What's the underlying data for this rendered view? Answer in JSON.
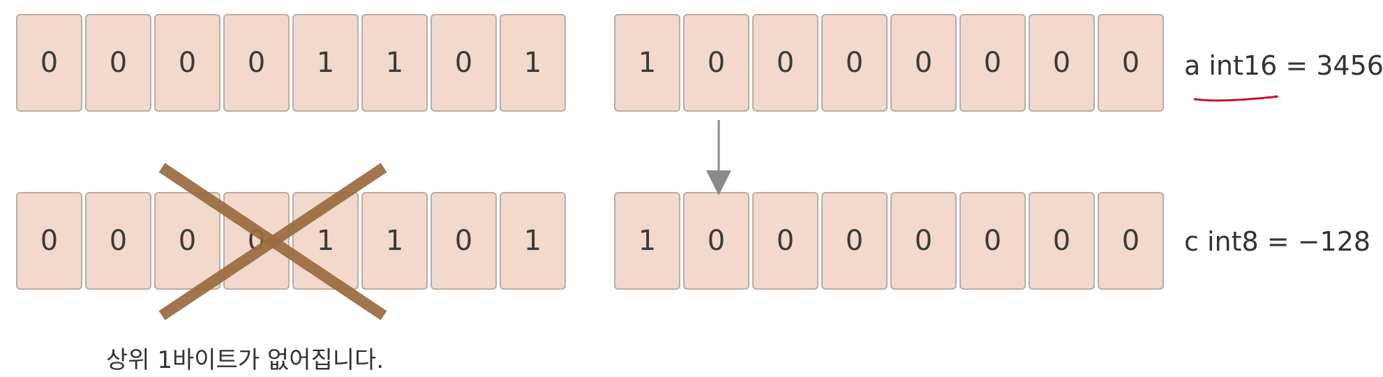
{
  "rows": {
    "a_high": [
      "0",
      "0",
      "0",
      "0",
      "1",
      "1",
      "0",
      "1"
    ],
    "a_low": [
      "1",
      "0",
      "0",
      "0",
      "0",
      "0",
      "0",
      "0"
    ],
    "c_high": [
      "0",
      "0",
      "0",
      "0",
      "1",
      "1",
      "0",
      "1"
    ],
    "c_low": [
      "1",
      "0",
      "0",
      "0",
      "0",
      "0",
      "0",
      "0"
    ]
  },
  "labels": {
    "a_label": "a int16 = 3456",
    "c_label": "c int8 = −128"
  },
  "caption": "상위 1바이트가 없어집니다.",
  "colors": {
    "cell_fill": "#f3d9cb",
    "cell_border": "#b9aca5",
    "cross": "#9a6b3f",
    "underline": "#c8102e",
    "arrow": "#8a8a8a"
  }
}
